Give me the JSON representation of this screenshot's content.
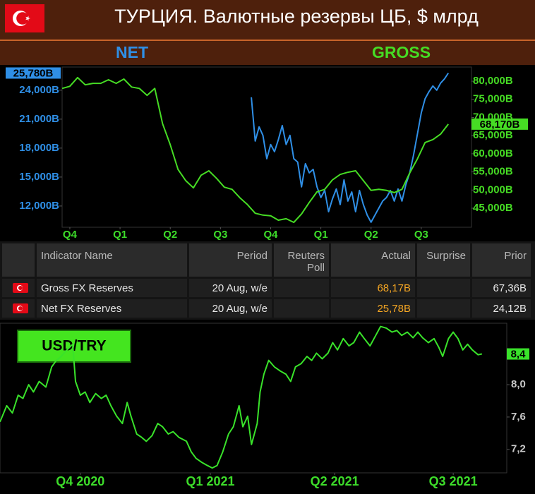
{
  "header": {
    "title": "ТУРЦИЯ. Валютные резервы ЦБ, $ млрд"
  },
  "chart_data": [
    {
      "type": "line",
      "xlim": [
        0,
        106
      ],
      "xticks": [
        {
          "value": 2,
          "label": "Q4"
        },
        {
          "value": 15,
          "label": "Q1"
        },
        {
          "value": 28,
          "label": "Q2"
        },
        {
          "value": 41,
          "label": "Q3"
        },
        {
          "value": 54,
          "label": "Q4"
        },
        {
          "value": 67,
          "label": "Q1"
        },
        {
          "value": 80,
          "label": "Q2"
        },
        {
          "value": 93,
          "label": "Q3"
        }
      ],
      "ylim": [
        9800,
        26400
      ],
      "yticks": [
        {
          "value": 12000,
          "label": "12,000B"
        },
        {
          "value": 15000,
          "label": "15,000B"
        },
        {
          "value": 18000,
          "label": "18,000B"
        },
        {
          "value": 21000,
          "label": "21,000B"
        },
        {
          "value": 24000,
          "label": "24,000B"
        }
      ],
      "y2lim": [
        39750,
        83900
      ],
      "y2ticks": [
        {
          "value": 45000,
          "label": "45,000B"
        },
        {
          "value": 50000,
          "label": "50,000B"
        },
        {
          "value": 55000,
          "label": "55,000B"
        },
        {
          "value": 60000,
          "label": "60,000B"
        },
        {
          "value": 65000,
          "label": "65,000B"
        },
        {
          "value": 70000,
          "label": "70,000B"
        },
        {
          "value": 75000,
          "label": "75,000B"
        },
        {
          "value": 80000,
          "label": "80,000B"
        }
      ],
      "series": [
        {
          "name": "NET",
          "color": "#2f8fe6",
          "axis": "y",
          "x": [
            49,
            50,
            51,
            52,
            53,
            54,
            55,
            56,
            57,
            58,
            59,
            60,
            61,
            62,
            63,
            64,
            65,
            66,
            67,
            68,
            69,
            70,
            71,
            72,
            73,
            74,
            75,
            76,
            77,
            78,
            79,
            80,
            81,
            82,
            83,
            84,
            85,
            86,
            87,
            88,
            89,
            90,
            91,
            92,
            93,
            94,
            95,
            96,
            97,
            98,
            99,
            100
          ],
          "values": [
            23270,
            18730,
            20200,
            19320,
            16900,
            18370,
            17630,
            18880,
            20340,
            18370,
            19320,
            16900,
            16540,
            13980,
            16390,
            15440,
            15800,
            13980,
            12880,
            13610,
            11410,
            12730,
            13760,
            12150,
            14710,
            12510,
            13460,
            11410,
            13610,
            12150,
            11050,
            10320,
            11050,
            11780,
            12510,
            12880,
            13610,
            12510,
            13760,
            12510,
            14200,
            15440,
            17270,
            19460,
            21660,
            23120,
            23850,
            24440,
            24000,
            24730,
            25170,
            25780
          ],
          "last_value_label": "25,780B"
        },
        {
          "name": "GROSS",
          "color": "#46dc24",
          "axis": "y2",
          "x": [
            0,
            2,
            4,
            6,
            8,
            10,
            12,
            14,
            16,
            18,
            20,
            22,
            24,
            26,
            28,
            30,
            32,
            34,
            36,
            38,
            40,
            42,
            44,
            46,
            48,
            50,
            52,
            54,
            56,
            58,
            60,
            62,
            64,
            66,
            68,
            70,
            72,
            74,
            76,
            78,
            80,
            82,
            84,
            86,
            88,
            90,
            92,
            94,
            96,
            98,
            100
          ],
          "values": [
            78000,
            78600,
            81000,
            79000,
            79400,
            79400,
            80400,
            79400,
            80600,
            78400,
            78000,
            76100,
            78000,
            68300,
            62500,
            55700,
            52600,
            50600,
            54100,
            55300,
            53200,
            50800,
            50200,
            47900,
            46000,
            43600,
            43100,
            42900,
            41700,
            42100,
            41100,
            43400,
            46600,
            49500,
            50200,
            52800,
            54300,
            54900,
            55300,
            52600,
            49900,
            50200,
            49900,
            49300,
            50200,
            54700,
            58600,
            63100,
            63900,
            65400,
            68170
          ],
          "last_value_label": "68,170B"
        }
      ]
    },
    {
      "type": "line",
      "title": "USD/TRY",
      "y_axis_side": "right",
      "color": "#39e22a",
      "xlim": [
        0,
        53
      ],
      "xticks": [
        {
          "value": 8.4,
          "label": "Q4 2020"
        },
        {
          "value": 22,
          "label": "Q1 2021"
        },
        {
          "value": 35,
          "label": "Q2 2021"
        },
        {
          "value": 47.4,
          "label": "Q3 2021"
        }
      ],
      "ylim": [
        6.91,
        8.76
      ],
      "yticks": [
        {
          "value": 7.2,
          "label": "7,2"
        },
        {
          "value": 7.6,
          "label": "7,6"
        },
        {
          "value": 8,
          "label": "8,0"
        }
      ],
      "x": [
        0,
        0.7,
        1.3,
        1.9,
        2.4,
        3.0,
        3.5,
        4.1,
        4.8,
        5.4,
        5.9,
        6.4,
        7.0,
        7.6,
        7.9,
        8.4,
        8.9,
        9.4,
        10.0,
        10.6,
        11.1,
        11.6,
        12.2,
        12.8,
        13.3,
        13.7,
        14.3,
        14.8,
        15.3,
        15.9,
        16.5,
        17.0,
        17.6,
        18.1,
        18.7,
        19.5,
        20.0,
        20.5,
        21.1,
        21.7,
        22.2,
        22.7,
        23.3,
        23.9,
        24.4,
        25.0,
        25.4,
        25.9,
        26.3,
        26.9,
        27.2,
        27.6,
        28.1,
        28.7,
        29.3,
        29.9,
        30.4,
        30.9,
        31.5,
        32.1,
        32.6,
        33.1,
        33.7,
        34.3,
        34.8,
        35.3,
        35.9,
        36.5,
        37.0,
        37.6,
        38.1,
        38.7,
        39.3,
        39.8,
        40.4,
        41.0,
        41.5,
        42.0,
        42.6,
        43.2,
        43.7,
        44.2,
        44.8,
        45.4,
        45.9,
        46.3,
        46.9,
        47.4,
        47.9,
        48.4,
        48.9,
        49.4,
        50.0,
        50.4
      ],
      "values": [
        7.54,
        7.74,
        7.65,
        7.87,
        7.83,
        8.0,
        7.91,
        8.04,
        7.97,
        8.22,
        8.3,
        8.35,
        8.43,
        8.5,
        8.04,
        7.87,
        7.91,
        7.78,
        7.89,
        7.83,
        7.87,
        7.74,
        7.61,
        7.52,
        7.78,
        7.61,
        7.39,
        7.35,
        7.3,
        7.37,
        7.52,
        7.48,
        7.39,
        7.42,
        7.35,
        7.3,
        7.17,
        7.09,
        7.04,
        7.0,
        6.97,
        7.0,
        7.17,
        7.39,
        7.48,
        7.74,
        7.48,
        7.61,
        7.26,
        7.52,
        7.91,
        8.13,
        8.3,
        8.22,
        8.17,
        8.13,
        8.04,
        8.22,
        8.26,
        8.35,
        8.3,
        8.39,
        8.32,
        8.39,
        8.52,
        8.43,
        8.57,
        8.48,
        8.52,
        8.65,
        8.57,
        8.48,
        8.61,
        8.72,
        8.7,
        8.65,
        8.67,
        8.61,
        8.65,
        8.58,
        8.65,
        8.58,
        8.52,
        8.57,
        8.46,
        8.35,
        8.57,
        8.65,
        8.57,
        8.43,
        8.5,
        8.43,
        8.37,
        8.38
      ],
      "last_value_label": "8,4"
    }
  ],
  "table": {
    "columns": [
      "Indicator Name",
      "Period",
      "Reuters Poll",
      "Actual",
      "Surprise",
      "Prior"
    ],
    "rows": [
      [
        "Gross FX Reserves",
        "20 Aug, w/e",
        null,
        "68,17B",
        null,
        "67,36B"
      ],
      [
        "Net FX Reserves",
        "20 Aug, w/e",
        null,
        "25,78B",
        null,
        "24,12B"
      ]
    ]
  }
}
